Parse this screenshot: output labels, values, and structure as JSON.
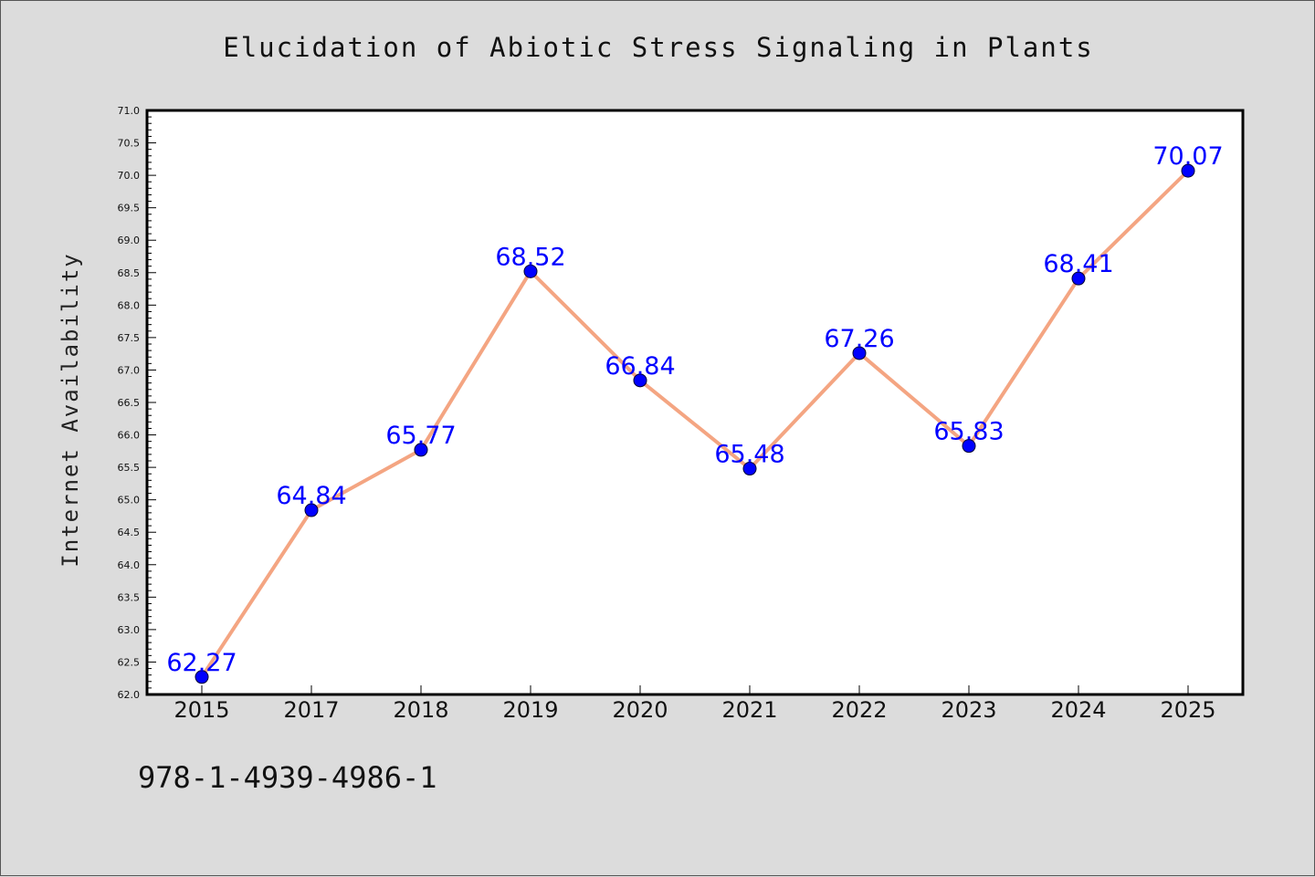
{
  "chart_data": {
    "type": "line",
    "title": "Elucidation of Abiotic Stress Signaling in Plants",
    "xlabel": "",
    "ylabel": "Internet Availability",
    "categories": [
      "2015",
      "2017",
      "2018",
      "2019",
      "2020",
      "2021",
      "2022",
      "2023",
      "2024",
      "2025"
    ],
    "series": [
      {
        "values": [
          62.27,
          64.84,
          65.77,
          68.52,
          66.84,
          65.48,
          67.26,
          65.83,
          68.41,
          70.07
        ],
        "labels": [
          "62.27",
          "64.84",
          "65.77",
          "68.52",
          "66.84",
          "65.48",
          "67.26",
          "65.83",
          "68.41",
          "70.07"
        ],
        "line_color": "#f4a582",
        "marker_color": "#0000ff"
      }
    ],
    "ylim": [
      62.0,
      71.0
    ],
    "ytick_step": 0.5,
    "grid": false,
    "legend": "none"
  },
  "footer": {
    "code": "978-1-4939-4986-1"
  },
  "colors": {
    "background": "#dcdcdc",
    "plot_area": "#ffffff",
    "data_label": "#0000ff"
  }
}
